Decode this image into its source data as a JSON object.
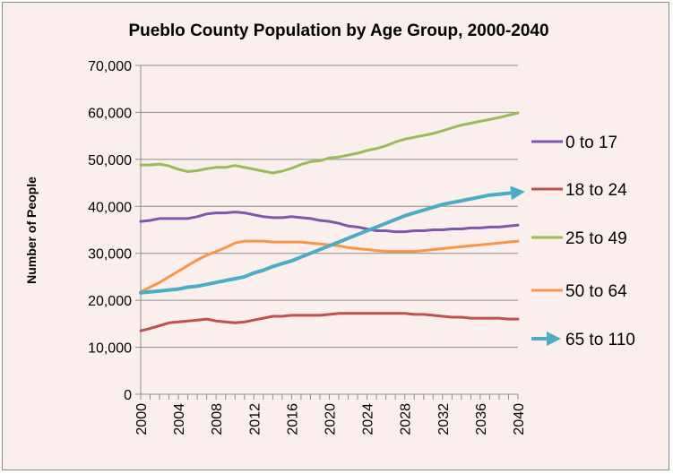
{
  "chart_data": {
    "type": "line",
    "title": "Pueblo County Population by Age Group, 2000-2040",
    "xlabel": "",
    "ylabel": "Number of People",
    "ylim": [
      0,
      70000
    ],
    "yticks": [
      "0",
      "10,000",
      "20,000",
      "30,000",
      "40,000",
      "50,000",
      "60,000",
      "70,000"
    ],
    "xlim": [
      2000,
      2040
    ],
    "xticks": [
      "2000",
      "2004",
      "2008",
      "2012",
      "2016",
      "2020",
      "2024",
      "2028",
      "2032",
      "2036",
      "2040"
    ],
    "grid": "horizontal",
    "legend": "right",
    "x": [
      2000,
      2001,
      2002,
      2003,
      2004,
      2005,
      2006,
      2007,
      2008,
      2009,
      2010,
      2011,
      2012,
      2013,
      2014,
      2015,
      2016,
      2017,
      2018,
      2019,
      2020,
      2021,
      2022,
      2023,
      2024,
      2025,
      2026,
      2027,
      2028,
      2029,
      2030,
      2031,
      2032,
      2033,
      2034,
      2035,
      2036,
      2037,
      2038,
      2039,
      2040
    ],
    "series": [
      {
        "name": "0 to 17",
        "color": "#7e57a8",
        "values": [
          36800,
          37000,
          37400,
          37400,
          37400,
          37400,
          37800,
          38400,
          38600,
          38600,
          38800,
          38600,
          38200,
          37800,
          37600,
          37600,
          37800,
          37600,
          37400,
          37000,
          36800,
          36400,
          35800,
          35600,
          35200,
          34800,
          34800,
          34600,
          34600,
          34800,
          34800,
          35000,
          35000,
          35200,
          35200,
          35400,
          35400,
          35600,
          35600,
          35800,
          36000
        ]
      },
      {
        "name": "18 to 24",
        "color": "#c0504d",
        "values": [
          13500,
          14000,
          14600,
          15200,
          15400,
          15600,
          15800,
          16000,
          15600,
          15400,
          15200,
          15400,
          15800,
          16200,
          16600,
          16600,
          16800,
          16800,
          16800,
          16800,
          17000,
          17200,
          17200,
          17200,
          17200,
          17200,
          17200,
          17200,
          17200,
          17000,
          17000,
          16800,
          16600,
          16400,
          16400,
          16200,
          16200,
          16200,
          16200,
          16000,
          16000
        ]
      },
      {
        "name": "25 to 49",
        "color": "#9bbb59",
        "values": [
          48800,
          48800,
          49000,
          48600,
          47900,
          47400,
          47600,
          48000,
          48300,
          48300,
          48700,
          48300,
          47900,
          47500,
          47100,
          47500,
          48100,
          48900,
          49500,
          49700,
          50300,
          50500,
          50900,
          51300,
          51900,
          52300,
          52900,
          53700,
          54300,
          54700,
          55100,
          55500,
          56100,
          56700,
          57300,
          57700,
          58100,
          58500,
          58900,
          59400,
          59900
        ]
      },
      {
        "name": "50 to 64",
        "color": "#f79646",
        "values": [
          21800,
          22800,
          23800,
          25000,
          26200,
          27400,
          28600,
          29600,
          30400,
          31200,
          32200,
          32600,
          32600,
          32600,
          32400,
          32400,
          32400,
          32400,
          32200,
          32000,
          31800,
          31600,
          31200,
          31000,
          30800,
          30600,
          30400,
          30400,
          30400,
          30400,
          30600,
          30800,
          31000,
          31200,
          31400,
          31600,
          31800,
          32000,
          32200,
          32400,
          32600
        ]
      },
      {
        "name": "65 to 110",
        "color": "#4bacc6",
        "values": [
          21600,
          21800,
          22000,
          22200,
          22400,
          22800,
          23000,
          23400,
          23800,
          24200,
          24600,
          25000,
          25800,
          26400,
          27200,
          27800,
          28400,
          29200,
          30000,
          30800,
          31600,
          32400,
          33200,
          34000,
          34800,
          35600,
          36400,
          37200,
          38000,
          38600,
          39200,
          39800,
          40400,
          40800,
          41200,
          41600,
          42000,
          42400,
          42600,
          42800,
          43000
        ]
      }
    ]
  }
}
